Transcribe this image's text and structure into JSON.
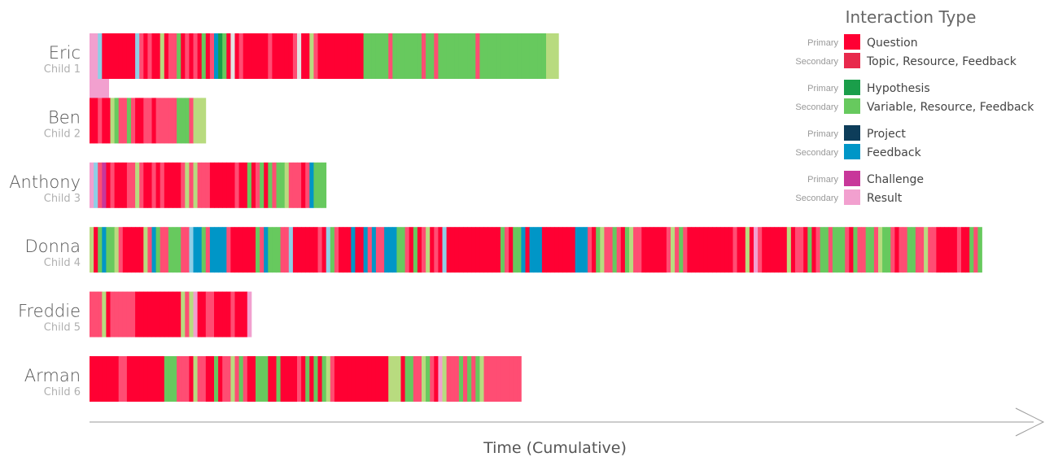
{
  "colors": {
    "Q": "#ff0033",
    "q": "#ff4d73",
    "H": "#1a9e4a",
    "h": "#67c95e",
    "l": "#b8db7f",
    "P": "#0d3d5a",
    "p": "#0096c7",
    "b": "#8ecfe6",
    "C": "#c8379a",
    "c": "#f2a0cf",
    "g": "#e3e3e3"
  },
  "chart_data": {
    "type": "timeline",
    "title": "",
    "xlabel": "Time (Cumulative)",
    "series": [
      {
        "name": "Eric",
        "sub": "Child 1",
        "seq": "ccbQQQQQQQQbqQqQQlQqqhQqQqQhQqpHhQgQqQQQQQQqQQQQQqgQQlqQQQQQQQQQQQhhhhhhqhhhhhhhqhhqhhhhhhhhhqhhhhhhhhhhhhhhhhlll"
      },
      {
        "name": "Ben",
        "sub": "Child 2",
        "seq": "QQqQQlhqqhqQQqqQqqqqqhhhqlll"
      },
      {
        "name": "Anthony",
        "sub": "Child 3",
        "seq": "cbqCQqQQQqqlqQQqQqQQQQqlqlqqqQQQQQQqQQhQqhQhqhhlqqqQqphhh"
      },
      {
        "name": "Donna",
        "sub": "Child 4",
        "seq": "lQhphhlqQQQQQlqphqqhhhqqbpphqppppqQQQQQQhqphhhqqbQQQQQQqQbhqQQQpQQpqpqqppphhqQhQqlQqQbQQQQQQQQQQQQQhqQhhpQpppQQQQQQQQpppqQhlqqhqQhlqqQQQQQQqlqhqQQQQQQQQQQQqQQlQcqQQQQQQlQqqQhQqhhqhhhqQhqqhhqlhhqQqqhhqqlqqQQQQQqQQhqh"
      },
      {
        "name": "Freddie",
        "sub": "Child 5",
        "seq": "qqqlQqqqqqqQQQQQQQQQQQlqlcQQqqQQQQqQQQc"
      },
      {
        "name": "Arman",
        "sub": "Child 6",
        "seq": "QQQQQQQqqQQQQQQQQQhhhqqqQlqqQQhQqqlqhqQQhhhQQhQQQQqQhQhQhlqQQQQQQQQQQQQQlllQhhqqlhqQclqqqhqhqhlqqqqqqqqq"
      }
    ],
    "legend": [
      {
        "level": "Primary",
        "label": "Question",
        "color": "#ff0033"
      },
      {
        "level": "Secondary",
        "label": "Topic, Resource, Feedback",
        "color": "#e8294c"
      },
      {
        "level": "Primary",
        "label": "Hypothesis",
        "color": "#1a9e4a"
      },
      {
        "level": "Secondary",
        "label": "Variable, Resource, Feedback",
        "color": "#67c95e"
      },
      {
        "level": "Primary",
        "label": "Project",
        "color": "#0d3d5a"
      },
      {
        "level": "Secondary",
        "label": "Feedback",
        "color": "#0096c7"
      },
      {
        "level": "Primary",
        "label": "Challenge",
        "color": "#c8379a"
      },
      {
        "level": "Secondary",
        "label": "Result",
        "color": "#f2a0cf"
      }
    ],
    "legend_title": "Interaction Type",
    "legend_placement": "top-right"
  }
}
